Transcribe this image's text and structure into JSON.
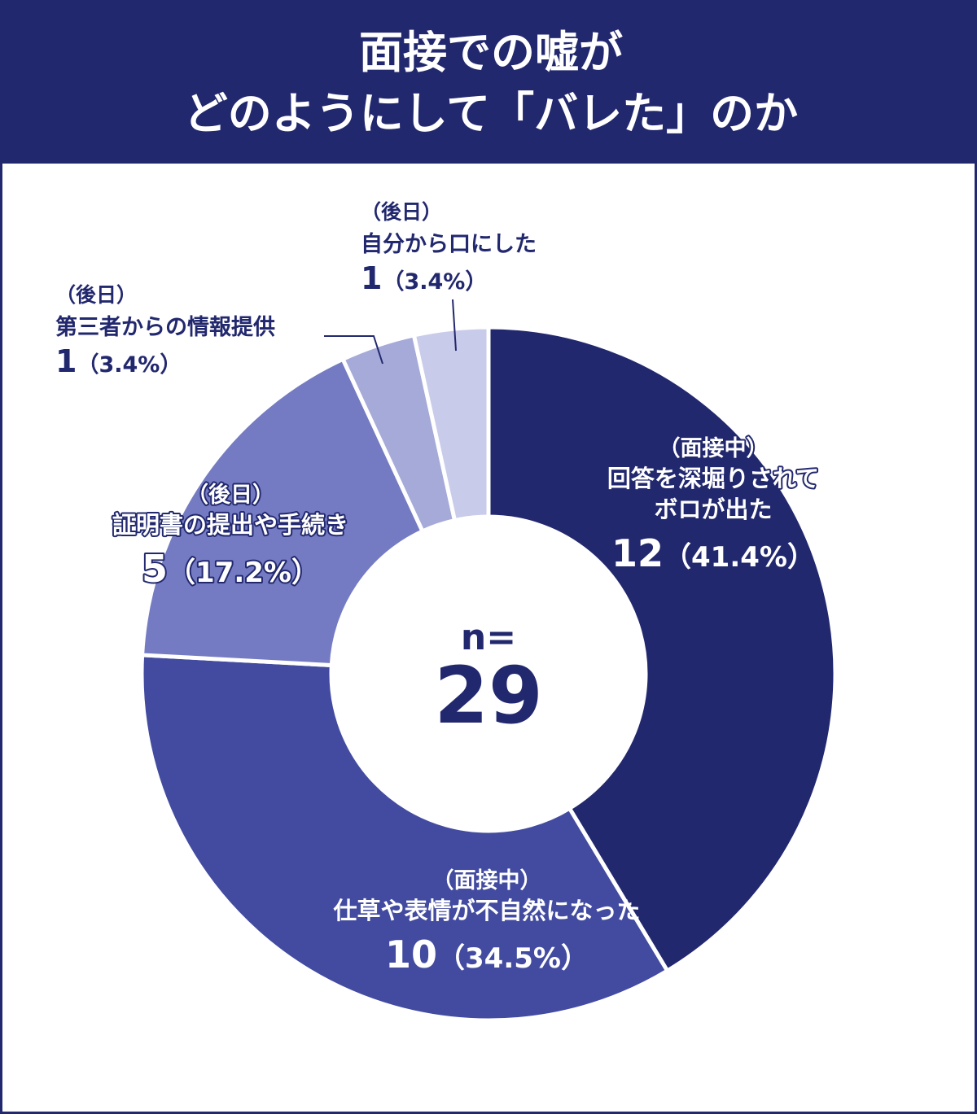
{
  "header": {
    "title_line1": "面接での嘘が",
    "title_line2": "どのようにして「バレた」のか"
  },
  "colors": {
    "header_bg": "#22286e",
    "background": "#ffffff",
    "label_text": "#22286e",
    "slice_colors": [
      "#22286e",
      "#424ba0",
      "#747bc2",
      "#a5aad8",
      "#c9cbea"
    ]
  },
  "chart_data": {
    "type": "pie",
    "donut": true,
    "center_label": "n=",
    "center_value": "29",
    "total": 29,
    "slices": [
      {
        "category": "（面接中）",
        "label": "回答を深堀りされてボロが出た",
        "label_lines": [
          "回答を深堀りされて",
          "ボロが出た"
        ],
        "value": 12,
        "percent_text": "（41.4%）"
      },
      {
        "category": "（面接中）",
        "label": "仕草や表情が不自然になった",
        "label_lines": [
          "仕草や表情が不自然になった"
        ],
        "value": 10,
        "percent_text": "（34.5%）"
      },
      {
        "category": "（後日）",
        "label": "証明書の提出や手続き",
        "label_lines": [
          "証明書の提出や手続き"
        ],
        "value": 5,
        "percent_text": "（17.2%）"
      },
      {
        "category": "（後日）",
        "label": "第三者からの情報提供",
        "label_lines": [
          "第三者からの情報提供"
        ],
        "value": 1,
        "percent_text": "（3.4%）"
      },
      {
        "category": "（後日）",
        "label": "自分から口にした",
        "label_lines": [
          "自分から口にした"
        ],
        "value": 1,
        "percent_text": "（3.4%）"
      }
    ]
  }
}
